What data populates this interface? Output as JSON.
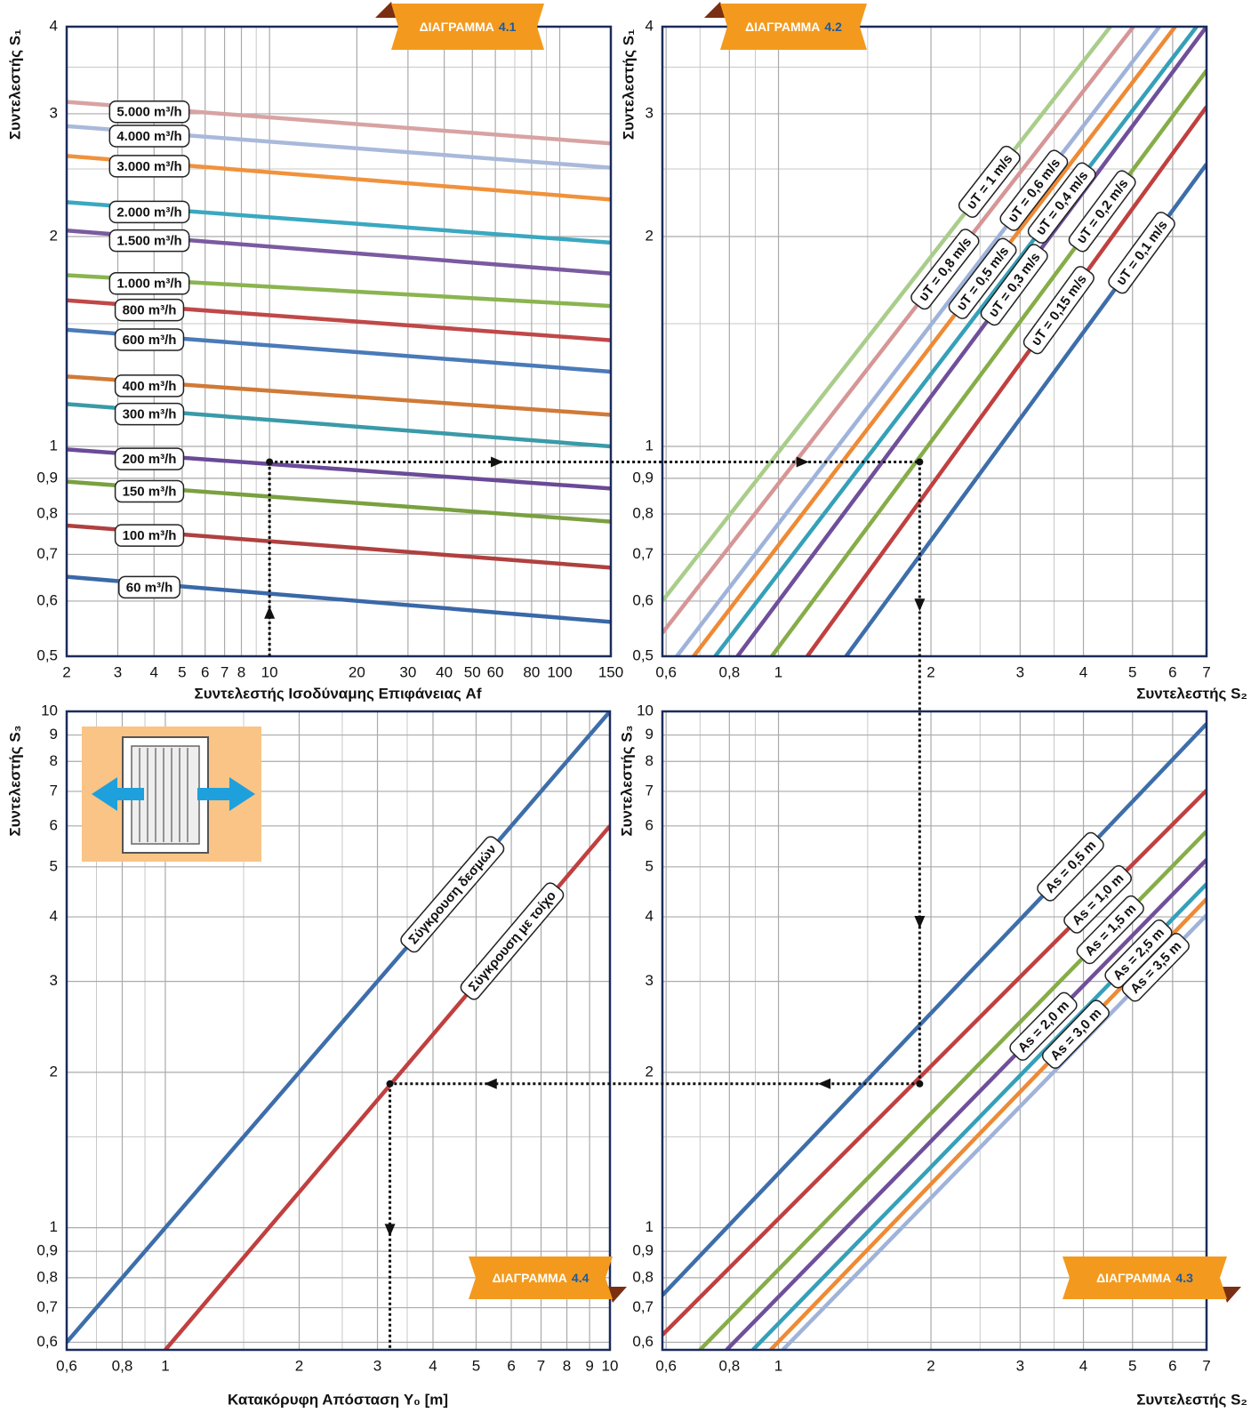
{
  "chart_data": [
    {
      "type": "line",
      "title": {
        "label": "ΔΙΑΓΡΑΜΜΑ",
        "number": "4.1"
      },
      "xlabel": "Συντελεστής Ισοδύναμης Επιφάνειας Af",
      "ylabel": "Συντελεστής S₁",
      "xscale": "log",
      "yscale": "log",
      "xlim": [
        2,
        150
      ],
      "ylim": [
        0.5,
        4
      ],
      "xticks": [
        2,
        3,
        4,
        5,
        6,
        7,
        8,
        10,
        20,
        30,
        40,
        50,
        60,
        80,
        100,
        150
      ],
      "xminor": [
        9,
        70,
        90
      ],
      "yminor": [
        1.5,
        2.5,
        3.5
      ],
      "yticks": [
        {
          "value": 0.5,
          "label": "0,5"
        },
        {
          "value": 0.6,
          "label": "0,6"
        },
        {
          "value": 0.7,
          "label": "0,7"
        },
        {
          "value": 0.8,
          "label": "0,8"
        },
        {
          "value": 0.9,
          "label": "0,9"
        },
        1,
        2,
        3,
        4
      ],
      "grid": true,
      "series": [
        {
          "name": "5.000 m³/h",
          "color": "#d8a3a3",
          "x": [
            2,
            150
          ],
          "values": [
            3.12,
            2.72
          ]
        },
        {
          "name": "4.000 m³/h",
          "color": "#a9b9da",
          "x": [
            2,
            150
          ],
          "values": [
            2.88,
            2.51
          ]
        },
        {
          "name": "3.000 m³/h",
          "color": "#f0923c",
          "x": [
            2,
            150
          ],
          "values": [
            2.61,
            2.26
          ]
        },
        {
          "name": "2.000 m³/h",
          "color": "#3aa8c0",
          "x": [
            2,
            150
          ],
          "values": [
            2.24,
            1.96
          ]
        },
        {
          "name": "1.500 m³/h",
          "color": "#7a5aa0",
          "x": [
            2,
            150
          ],
          "values": [
            2.04,
            1.77
          ]
        },
        {
          "name": "1.000 m³/h",
          "color": "#8ab450",
          "x": [
            2,
            150
          ],
          "values": [
            1.76,
            1.59
          ]
        },
        {
          "name": "800 m³/h",
          "color": "#c04848",
          "x": [
            2,
            150
          ],
          "values": [
            1.62,
            1.42
          ]
        },
        {
          "name": "600 m³/h",
          "color": "#4a7ab8",
          "x": [
            2,
            150
          ],
          "values": [
            1.47,
            1.28
          ]
        },
        {
          "name": "400 m³/h",
          "color": "#d07a38",
          "x": [
            2,
            150
          ],
          "values": [
            1.26,
            1.11
          ]
        },
        {
          "name": "300 m³/h",
          "color": "#3a9aa8",
          "x": [
            2,
            150
          ],
          "values": [
            1.15,
            1.0
          ]
        },
        {
          "name": "200 m³/h",
          "color": "#6a4a98",
          "x": [
            2,
            150
          ],
          "values": [
            0.99,
            0.87
          ]
        },
        {
          "name": "150 m³/h",
          "color": "#7aa040",
          "x": [
            2,
            150
          ],
          "values": [
            0.89,
            0.78
          ]
        },
        {
          "name": "100 m³/h",
          "color": "#b04040",
          "x": [
            2,
            150
          ],
          "values": [
            0.77,
            0.67
          ]
        },
        {
          "name": "60 m³/h",
          "color": "#3a68a8",
          "x": [
            2,
            150
          ],
          "values": [
            0.65,
            0.56
          ]
        }
      ]
    },
    {
      "type": "line",
      "title": {
        "label": "ΔΙΑΓΡΑΜΜΑ",
        "number": "4.2"
      },
      "xlabel": "Συντελεστής S₂",
      "ylabel": "Συντελεστής S₁",
      "xscale": "log",
      "yscale": "log",
      "xlim": [
        0.59,
        7
      ],
      "ylim": [
        0.5,
        4
      ],
      "xticks": [
        {
          "value": 0.6,
          "label": "0,6"
        },
        {
          "value": 0.8,
          "label": "0,8"
        },
        1,
        2,
        3,
        4,
        5,
        6,
        7
      ],
      "xminor": [
        0.7,
        0.9,
        1.5,
        2.5,
        3.5
      ],
      "yminor": [
        1.5,
        2.5,
        3.5
      ],
      "yticks": [
        {
          "value": 0.5,
          "label": "0,5"
        },
        {
          "value": 0.6,
          "label": "0,6"
        },
        {
          "value": 0.7,
          "label": "0,7"
        },
        {
          "value": 0.8,
          "label": "0,8"
        },
        {
          "value": 0.9,
          "label": "0,9"
        },
        1,
        2,
        3,
        4
      ],
      "grid": true,
      "series": [
        {
          "name": "υT = 1 m/s",
          "color": "#a9cd8a",
          "x": [
            0.59,
            4.52
          ],
          "values": [
            0.6,
            4
          ]
        },
        {
          "name": "υT = 0,8 m/s",
          "color": "#d69696",
          "x": [
            0.59,
            5.02
          ],
          "values": [
            0.54,
            4
          ]
        },
        {
          "name": "υT = 0,6 m/s",
          "color": "#9fb3da",
          "x": [
            0.63,
            5.65
          ],
          "values": [
            0.5,
            4
          ]
        },
        {
          "name": "υT = 0,5 m/s",
          "color": "#ee8a35",
          "x": [
            0.68,
            6.07
          ],
          "values": [
            0.5,
            4
          ]
        },
        {
          "name": "υT = 0,4 m/s",
          "color": "#35a0b8",
          "x": [
            0.75,
            6.69
          ],
          "values": [
            0.5,
            4
          ]
        },
        {
          "name": "υT = 0,3 m/s",
          "color": "#6f4f9a",
          "x": [
            0.83,
            7
          ],
          "values": [
            0.5,
            4
          ]
        },
        {
          "name": "υT = 0,2 m/s",
          "color": "#86ad48",
          "x": [
            0.97,
            7
          ],
          "values": [
            0.5,
            3.46
          ]
        },
        {
          "name": "υT = 0,15 m/s",
          "color": "#c0403f",
          "x": [
            1.14,
            7
          ],
          "values": [
            0.5,
            3.07
          ]
        },
        {
          "name": "υT = 0,1 m/s",
          "color": "#3d6eaa",
          "x": [
            1.36,
            7
          ],
          "values": [
            0.5,
            2.54
          ]
        }
      ]
    },
    {
      "type": "line",
      "title": {
        "label": "ΔΙΑΓΡΑΜΜΑ",
        "number": "4.3"
      },
      "xlabel": "Συντελεστής S₂",
      "ylabel": "Συντελεστής S₃",
      "xscale": "log",
      "yscale": "log",
      "xlim": [
        0.59,
        7
      ],
      "ylim": [
        0.58,
        10
      ],
      "xticks": [
        {
          "value": 0.6,
          "label": "0,6"
        },
        {
          "value": 0.8,
          "label": "0,8"
        },
        1,
        2,
        3,
        4,
        5,
        6,
        7
      ],
      "xminor": [
        0.7,
        0.9,
        1.5,
        2.5,
        3.5
      ],
      "yminor": [
        1.5
      ],
      "yticks": [
        {
          "value": 0.6,
          "label": "0,6"
        },
        {
          "value": 0.7,
          "label": "0,7"
        },
        {
          "value": 0.8,
          "label": "0,8"
        },
        {
          "value": 0.9,
          "label": "0,9"
        },
        1,
        2,
        3,
        4,
        5,
        6,
        7,
        8,
        9,
        10
      ],
      "grid": true,
      "series": [
        {
          "name": "As = 0,5 m",
          "color": "#3d6eaa",
          "x": [
            0.59,
            7
          ],
          "values": [
            0.74,
            9.46
          ]
        },
        {
          "name": "As = 1,0 m",
          "color": "#c0403f",
          "x": [
            0.59,
            7
          ],
          "values": [
            0.62,
            7.03
          ]
        },
        {
          "name": "As = 1,5 m",
          "color": "#86ad48",
          "x": [
            0.7,
            7
          ],
          "values": [
            0.58,
            5.86
          ]
        },
        {
          "name": "As = 2,0 m",
          "color": "#6f4f9a",
          "x": [
            0.79,
            7
          ],
          "values": [
            0.58,
            5.16
          ]
        },
        {
          "name": "As = 2,5 m",
          "color": "#35a0b8",
          "x": [
            0.89,
            7
          ],
          "values": [
            0.58,
            4.63
          ]
        },
        {
          "name": "As = 3,0 m",
          "color": "#ee8a35",
          "x": [
            0.965,
            7
          ],
          "values": [
            0.58,
            4.33
          ]
        },
        {
          "name": "As = 3,5 m",
          "color": "#9fb3da",
          "x": [
            1.02,
            7
          ],
          "values": [
            0.58,
            4.03
          ]
        }
      ]
    },
    {
      "type": "line",
      "title": {
        "label": "ΔΙΑΓΡΑΜΜΑ",
        "number": "4.4"
      },
      "xlabel": "Κατακόρυφη Απόσταση Y₀ [m]",
      "ylabel": "Συντελεστής S₃",
      "xscale": "log",
      "yscale": "log",
      "xlim": [
        0.6,
        10
      ],
      "ylim": [
        0.58,
        10
      ],
      "xticks": [
        {
          "value": 0.6,
          "label": "0,6"
        },
        {
          "value": 0.8,
          "label": "0,8"
        },
        1,
        2,
        3,
        4,
        5,
        6,
        7,
        8,
        9,
        10
      ],
      "xminor": [
        0.7,
        0.9,
        1.5,
        2.5,
        3.5
      ],
      "yminor": [
        1.5
      ],
      "yticks": [
        {
          "value": 0.6,
          "label": "0,6"
        },
        {
          "value": 0.7,
          "label": "0,7"
        },
        {
          "value": 0.8,
          "label": "0,8"
        },
        {
          "value": 0.9,
          "label": "0,9"
        },
        1,
        2,
        3,
        4,
        5,
        6,
        7,
        8,
        9,
        10
      ],
      "grid": true,
      "series": [
        {
          "name": "Σύγκρουση δεσμών",
          "color": "#3d6eaa",
          "x": [
            0.6,
            10
          ],
          "values": [
            0.6,
            10
          ]
        },
        {
          "name": "Σύγκρουση με τοίχο",
          "color": "#c0403f",
          "x": [
            1,
            10
          ],
          "values": [
            0.58,
            6
          ]
        }
      ]
    }
  ],
  "guide": {
    "af": 10,
    "s1": 0.95,
    "s2": 1.9,
    "s3": 1.9,
    "y0": 3.2
  }
}
